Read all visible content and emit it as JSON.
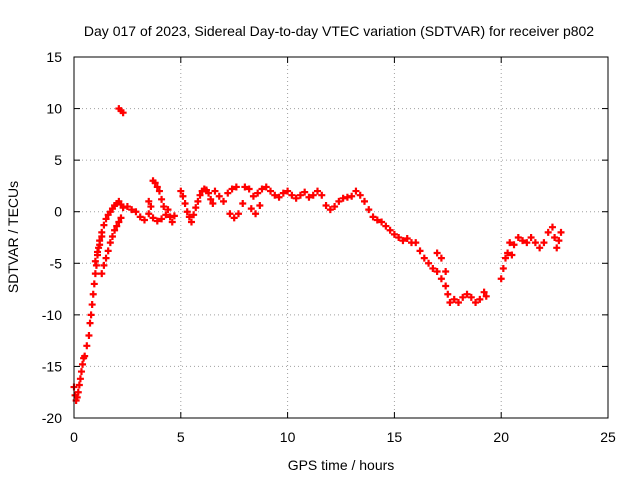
{
  "chart_data": {
    "type": "scatter",
    "title": "Day 017 of 2023, Sidereal Day-to-day VTEC variation (SDTVAR) for receiver p802",
    "xlabel": "GPS time / hours",
    "ylabel": "SDTVAR / TECUs",
    "xlim": [
      0,
      25
    ],
    "ylim": [
      -20,
      15
    ],
    "xticks": [
      0,
      5,
      10,
      15,
      20,
      25
    ],
    "yticks": [
      -20,
      -15,
      -10,
      -5,
      0,
      5,
      10,
      15
    ],
    "xtick_labels": [
      "0",
      "5",
      "10",
      "15",
      "20",
      "25"
    ],
    "ytick_labels": [
      "-20",
      "-15",
      "-10",
      "-5",
      "0",
      "5",
      "10",
      "15"
    ],
    "grid": true,
    "marker": "+",
    "series": [
      {
        "name": "SDTVAR",
        "color": "#ff0000",
        "points": [
          [
            0.0,
            -17.0
          ],
          [
            0.05,
            -17.8
          ],
          [
            0.1,
            -18.3
          ],
          [
            0.15,
            -18.0
          ],
          [
            0.2,
            -17.5
          ],
          [
            0.25,
            -16.8
          ],
          [
            0.3,
            -16.2
          ],
          [
            0.35,
            -15.5
          ],
          [
            0.4,
            -14.8
          ],
          [
            0.45,
            -14.2
          ],
          [
            0.5,
            -14.0
          ],
          [
            0.6,
            -13.0
          ],
          [
            0.7,
            -12.0
          ],
          [
            0.75,
            -10.8
          ],
          [
            0.8,
            -10.0
          ],
          [
            0.85,
            -9.0
          ],
          [
            0.9,
            -8.0
          ],
          [
            0.95,
            -7.0
          ],
          [
            1.0,
            -6.0
          ],
          [
            1.05,
            -5.2
          ],
          [
            1.1,
            -4.2
          ],
          [
            1.15,
            -3.5
          ],
          [
            1.2,
            -2.8
          ],
          [
            1.3,
            -2.0
          ],
          [
            1.4,
            -1.3
          ],
          [
            1.5,
            -0.7
          ],
          [
            1.6,
            -0.3
          ],
          [
            1.7,
            0.0
          ],
          [
            1.8,
            0.3
          ],
          [
            1.9,
            0.6
          ],
          [
            2.0,
            0.8
          ],
          [
            2.1,
            1.0
          ],
          [
            2.2,
            0.7
          ],
          [
            2.3,
            0.4
          ],
          [
            1.3,
            -6.0
          ],
          [
            1.4,
            -5.2
          ],
          [
            1.5,
            -4.5
          ],
          [
            1.6,
            -3.8
          ],
          [
            1.7,
            -3.0
          ],
          [
            1.8,
            -2.4
          ],
          [
            1.9,
            -1.8
          ],
          [
            2.0,
            -1.4
          ],
          [
            2.1,
            -1.0
          ],
          [
            2.2,
            -0.6
          ],
          [
            1.0,
            -4.8
          ],
          [
            1.1,
            -3.9
          ],
          [
            1.2,
            -3.2
          ],
          [
            1.3,
            -2.4
          ],
          [
            2.1,
            10.0
          ],
          [
            2.2,
            9.8
          ],
          [
            2.3,
            9.6
          ],
          [
            2.5,
            0.5
          ],
          [
            2.7,
            0.2
          ],
          [
            2.9,
            0.0
          ],
          [
            3.1,
            -0.5
          ],
          [
            3.3,
            -0.8
          ],
          [
            3.5,
            1.0
          ],
          [
            3.6,
            0.5
          ],
          [
            3.7,
            3.0
          ],
          [
            3.8,
            2.8
          ],
          [
            3.9,
            2.4
          ],
          [
            4.0,
            2.0
          ],
          [
            4.1,
            1.2
          ],
          [
            4.2,
            0.5
          ],
          [
            4.3,
            -0.3
          ],
          [
            4.4,
            0.2
          ],
          [
            4.5,
            -0.5
          ],
          [
            4.6,
            -1.0
          ],
          [
            4.7,
            -0.4
          ],
          [
            3.5,
            -0.2
          ],
          [
            3.7,
            -0.6
          ],
          [
            3.9,
            -0.9
          ],
          [
            4.1,
            -0.7
          ],
          [
            5.0,
            2.0
          ],
          [
            5.1,
            1.5
          ],
          [
            5.2,
            0.8
          ],
          [
            5.3,
            0.0
          ],
          [
            5.4,
            -0.5
          ],
          [
            5.5,
            -1.0
          ],
          [
            5.6,
            -0.3
          ],
          [
            5.7,
            0.4
          ],
          [
            5.8,
            1.0
          ],
          [
            5.9,
            1.6
          ],
          [
            6.0,
            2.0
          ],
          [
            6.1,
            2.2
          ],
          [
            6.2,
            2.1
          ],
          [
            6.3,
            1.8
          ],
          [
            6.4,
            1.2
          ],
          [
            6.5,
            0.8
          ],
          [
            6.6,
            2.0
          ],
          [
            6.8,
            1.5
          ],
          [
            7.0,
            1.0
          ],
          [
            7.2,
            1.8
          ],
          [
            7.4,
            2.2
          ],
          [
            7.6,
            2.4
          ],
          [
            7.3,
            -0.2
          ],
          [
            7.5,
            -0.6
          ],
          [
            7.7,
            -0.2
          ],
          [
            7.9,
            0.8
          ],
          [
            8.0,
            2.4
          ],
          [
            8.2,
            2.2
          ],
          [
            8.4,
            1.5
          ],
          [
            8.6,
            1.8
          ],
          [
            8.8,
            2.2
          ],
          [
            9.0,
            2.4
          ],
          [
            8.3,
            0.3
          ],
          [
            8.5,
            -0.2
          ],
          [
            8.7,
            0.6
          ],
          [
            9.2,
            2.0
          ],
          [
            9.4,
            1.6
          ],
          [
            9.6,
            1.4
          ],
          [
            9.8,
            1.8
          ],
          [
            10.0,
            2.0
          ],
          [
            10.2,
            1.6
          ],
          [
            10.4,
            1.3
          ],
          [
            10.6,
            1.6
          ],
          [
            10.8,
            1.9
          ],
          [
            11.0,
            1.4
          ],
          [
            11.2,
            1.6
          ],
          [
            11.4,
            2.0
          ],
          [
            11.6,
            1.6
          ],
          [
            11.8,
            0.6
          ],
          [
            12.0,
            0.2
          ],
          [
            12.2,
            0.5
          ],
          [
            12.4,
            1.0
          ],
          [
            12.6,
            1.3
          ],
          [
            12.8,
            1.4
          ],
          [
            13.0,
            1.5
          ],
          [
            13.2,
            2.0
          ],
          [
            13.4,
            1.6
          ],
          [
            13.6,
            1.0
          ],
          [
            13.8,
            0.2
          ],
          [
            14.0,
            -0.5
          ],
          [
            14.2,
            -0.8
          ],
          [
            14.4,
            -1.0
          ],
          [
            14.6,
            -1.4
          ],
          [
            14.8,
            -1.8
          ],
          [
            15.0,
            -2.2
          ],
          [
            15.2,
            -2.5
          ],
          [
            15.4,
            -2.8
          ],
          [
            15.6,
            -2.6
          ],
          [
            15.8,
            -3.0
          ],
          [
            16.0,
            -3.0
          ],
          [
            16.2,
            -3.8
          ],
          [
            16.4,
            -4.5
          ],
          [
            16.6,
            -5.0
          ],
          [
            16.8,
            -5.5
          ],
          [
            17.0,
            -5.8
          ],
          [
            17.2,
            -6.5
          ],
          [
            17.4,
            -7.2
          ],
          [
            17.5,
            -8.0
          ],
          [
            17.0,
            -4.0
          ],
          [
            17.2,
            -4.5
          ],
          [
            17.4,
            -5.8
          ],
          [
            17.6,
            -8.8
          ],
          [
            17.8,
            -8.5
          ],
          [
            18.0,
            -8.8
          ],
          [
            18.2,
            -8.3
          ],
          [
            18.4,
            -8.0
          ],
          [
            18.6,
            -8.3
          ],
          [
            18.8,
            -8.8
          ],
          [
            19.0,
            -8.5
          ],
          [
            19.2,
            -7.8
          ],
          [
            19.3,
            -8.2
          ],
          [
            20.0,
            -6.5
          ],
          [
            20.1,
            -5.5
          ],
          [
            20.2,
            -4.5
          ],
          [
            20.3,
            -4.0
          ],
          [
            20.4,
            -3.0
          ],
          [
            20.5,
            -4.2
          ],
          [
            20.6,
            -3.2
          ],
          [
            20.8,
            -2.5
          ],
          [
            21.0,
            -2.8
          ],
          [
            21.2,
            -3.0
          ],
          [
            21.4,
            -2.5
          ],
          [
            21.6,
            -3.0
          ],
          [
            21.8,
            -3.5
          ],
          [
            22.0,
            -3.0
          ],
          [
            22.2,
            -2.0
          ],
          [
            22.4,
            -1.5
          ],
          [
            22.5,
            -2.5
          ],
          [
            22.6,
            -3.5
          ],
          [
            22.7,
            -2.8
          ],
          [
            22.8,
            -2.0
          ]
        ]
      }
    ]
  }
}
